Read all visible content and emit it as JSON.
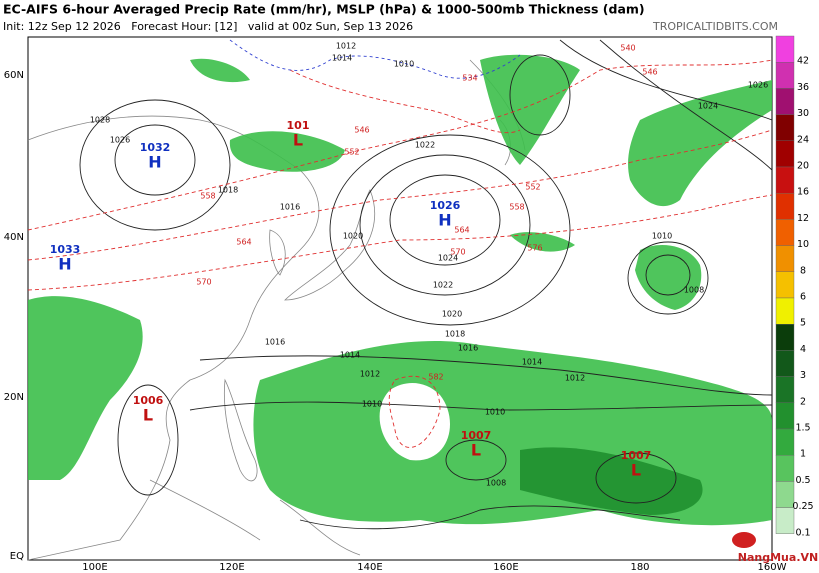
{
  "header": {
    "title": "EC-AIFS 6-hour Averaged Precip Rate (mm/hr), MSLP (hPa) & 1000-500mb Thickness (dam)",
    "subtitle": "Init: 12z Sep 12 2026   Forecast Hour: [12]   valid at 00z Sun, Sep 13 2026",
    "site": "TROPICALTIDBITS.COM"
  },
  "map": {
    "lat_labels": [
      "60N",
      "40N",
      "20N",
      "EQ"
    ],
    "lon_labels": [
      "100E",
      "120E",
      "140E",
      "160E",
      "180",
      "160W"
    ],
    "centers": [
      {
        "letter": "H",
        "value": "1032"
      },
      {
        "letter": "H",
        "value": "1026"
      },
      {
        "letter": "H",
        "value": "1033"
      },
      {
        "letter": "L",
        "value": "101"
      },
      {
        "letter": "L",
        "value": "1006"
      },
      {
        "letter": "L",
        "value": "1007"
      },
      {
        "letter": "L",
        "value": "1007"
      }
    ],
    "isobar_labels": [
      "1012",
      "1014",
      "1010",
      "1016",
      "1018",
      "1020",
      "1022",
      "1024",
      "1026",
      "1028",
      "1016",
      "1014",
      "1012",
      "1010",
      "1008",
      "1010",
      "1012",
      "1014",
      "1016",
      "1018",
      "1020",
      "1022",
      "1024",
      "1026",
      "1010",
      "1008"
    ],
    "thickness_labels": [
      "540",
      "534",
      "546",
      "552",
      "558",
      "564",
      "570",
      "576",
      "582",
      "546",
      "552",
      "558",
      "564",
      "570"
    ]
  },
  "colorbar": {
    "labels": [
      "42",
      "36",
      "30",
      "24",
      "20",
      "16",
      "12",
      "10",
      "8",
      "6",
      "5",
      "4",
      "3",
      "2",
      "1.5",
      "1",
      "0.5",
      "0.25",
      "0.1"
    ]
  },
  "watermark": "NangMua.VN"
}
